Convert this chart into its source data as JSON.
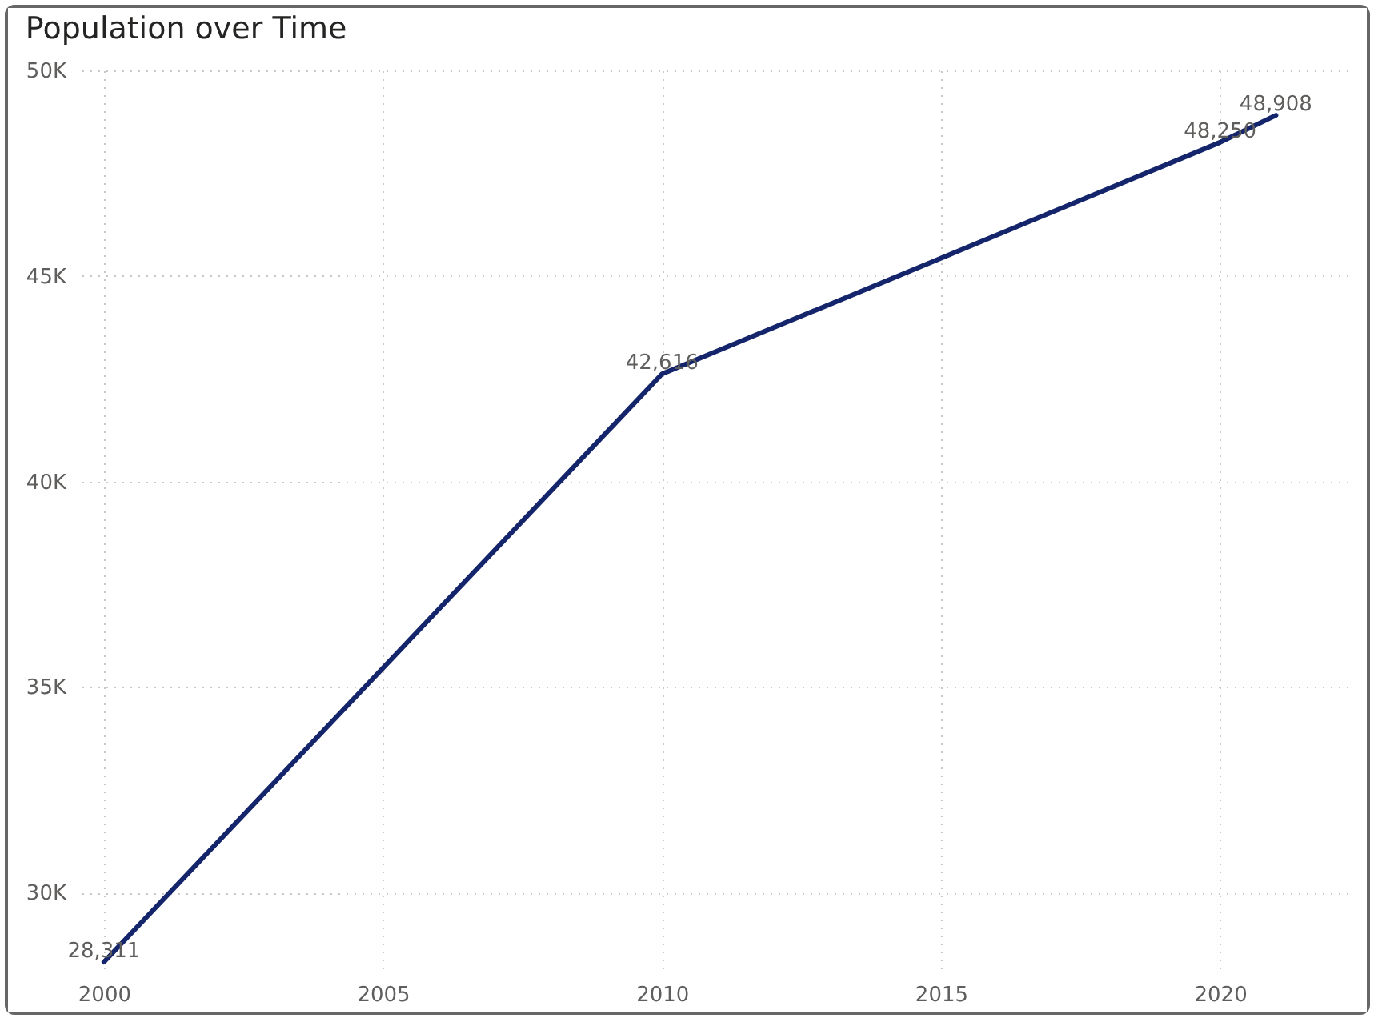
{
  "chart_data": {
    "type": "line",
    "title": "Population over Time",
    "x": [
      2000,
      2010,
      2020,
      2021
    ],
    "series": [
      {
        "color": "#14256b",
        "values": [
          28311,
          42616,
          48250,
          48908
        ],
        "value_labels": [
          "28,311",
          "42,616",
          "48,250",
          "48,908"
        ]
      }
    ],
    "xlim": [
      1999.6,
      2022.4
    ],
    "xticks": [
      2000,
      2005,
      2010,
      2015,
      2020
    ],
    "ylim": [
      28000,
      50000
    ],
    "yticks": [
      {
        "value": 30000,
        "label": "30K"
      },
      {
        "value": 35000,
        "label": "35K"
      },
      {
        "value": 40000,
        "label": "40K"
      },
      {
        "value": 45000,
        "label": "45K"
      },
      {
        "value": 50000,
        "label": "50K"
      }
    ],
    "grid": true
  }
}
